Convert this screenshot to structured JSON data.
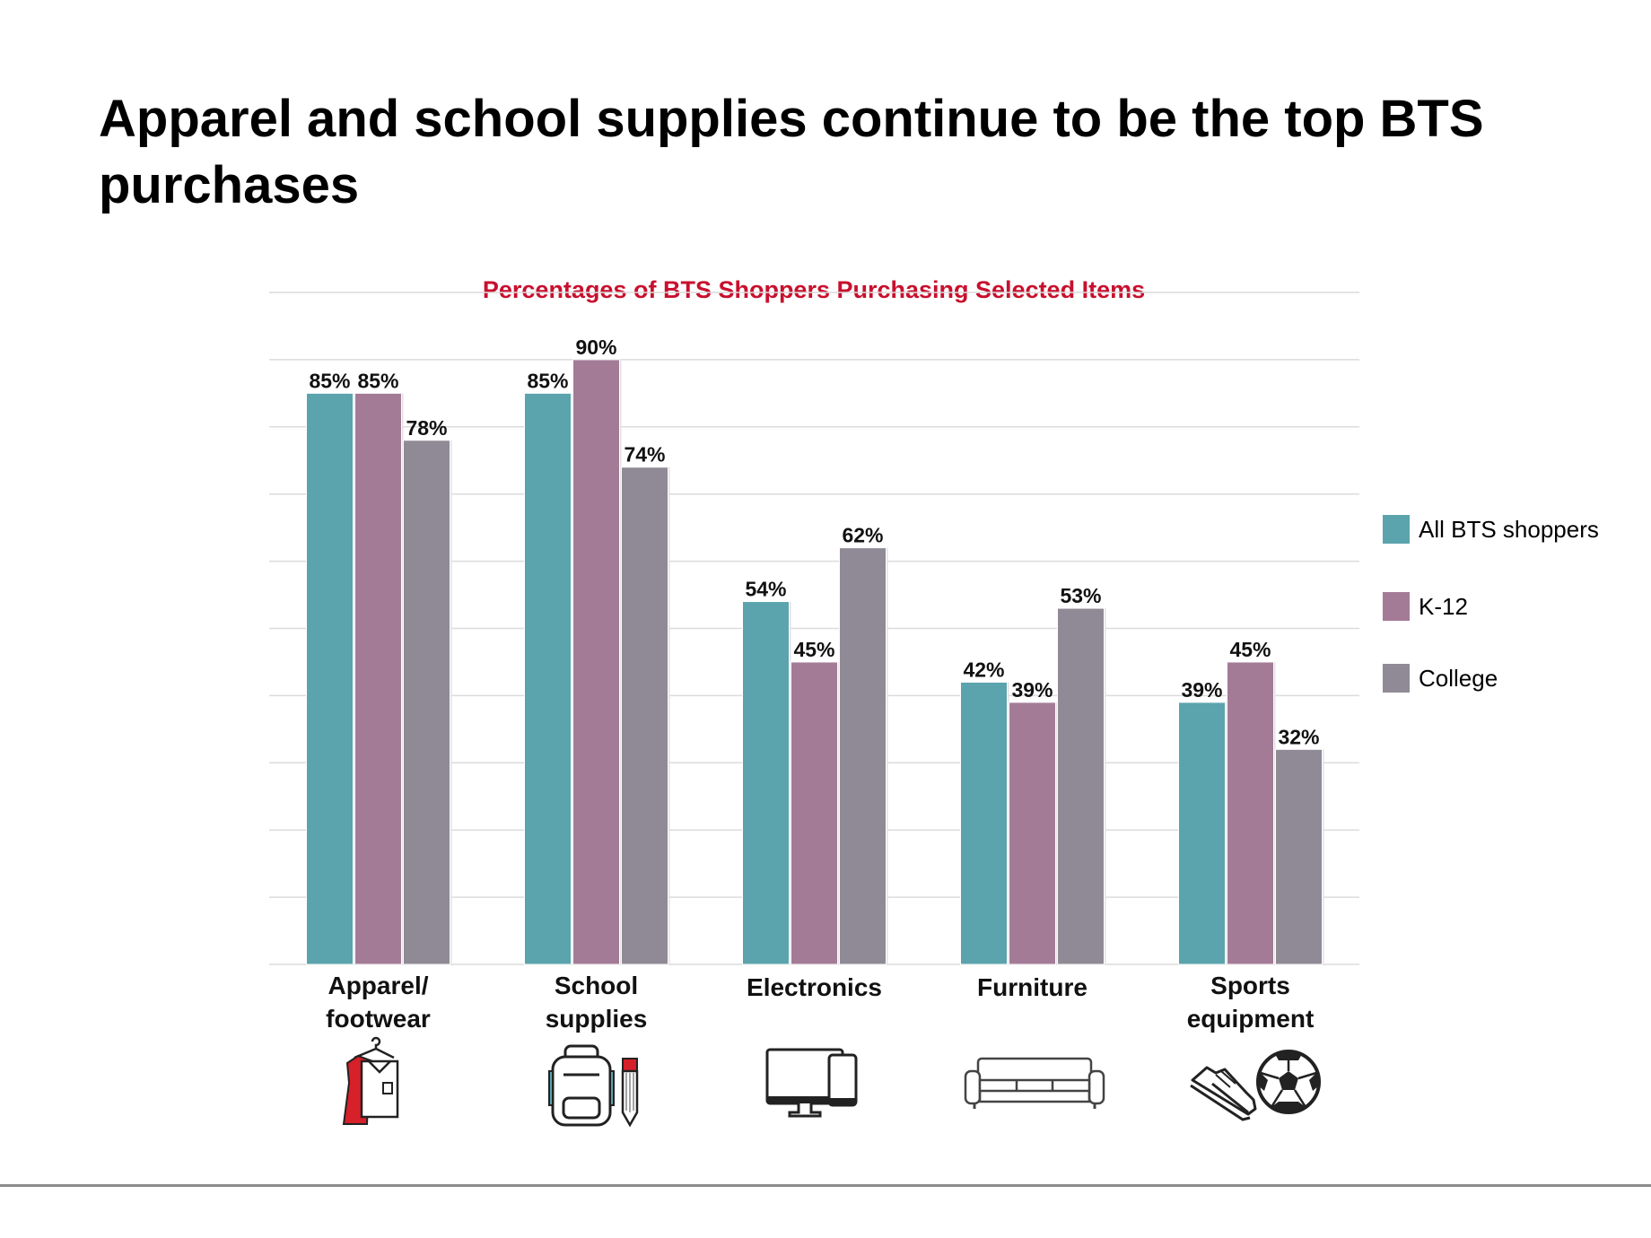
{
  "page": {
    "title": "Apparel and school supplies continue to be the top BTS purchases"
  },
  "colors": {
    "all": "#5ba3ad",
    "k12": "#a47b97",
    "college": "#8f8a95",
    "title_red": "#c8102e",
    "grid": "#dcdcdc"
  },
  "icons": [
    "apparel-icon",
    "backpack-pencil-icon",
    "computer-phone-icon",
    "sofa-icon",
    "sneaker-soccer-ball-icon"
  ],
  "chart_data": {
    "type": "bar",
    "title": "Percentages of BTS Shoppers Purchasing Selected Items",
    "categories": [
      [
        "Apparel/",
        "footwear"
      ],
      [
        "School",
        "supplies"
      ],
      [
        "Electronics"
      ],
      [
        "Furniture"
      ],
      [
        "Sports",
        "equipment"
      ]
    ],
    "series": [
      {
        "name": "All BTS shoppers",
        "values": [
          85,
          85,
          54,
          42,
          39
        ],
        "labels": [
          "85%",
          "85%",
          "54%",
          "42%",
          "39%"
        ]
      },
      {
        "name": "K-12",
        "values": [
          85,
          90,
          45,
          39,
          45
        ],
        "labels": [
          "85%",
          "90%",
          "45%",
          "39%",
          "45%"
        ]
      },
      {
        "name": "College",
        "values": [
          78,
          74,
          62,
          53,
          32
        ],
        "labels": [
          "78%",
          "74%",
          "62%",
          "53%",
          "32%"
        ]
      }
    ],
    "ylim": [
      0,
      100
    ],
    "grid": true,
    "legend": "right"
  }
}
